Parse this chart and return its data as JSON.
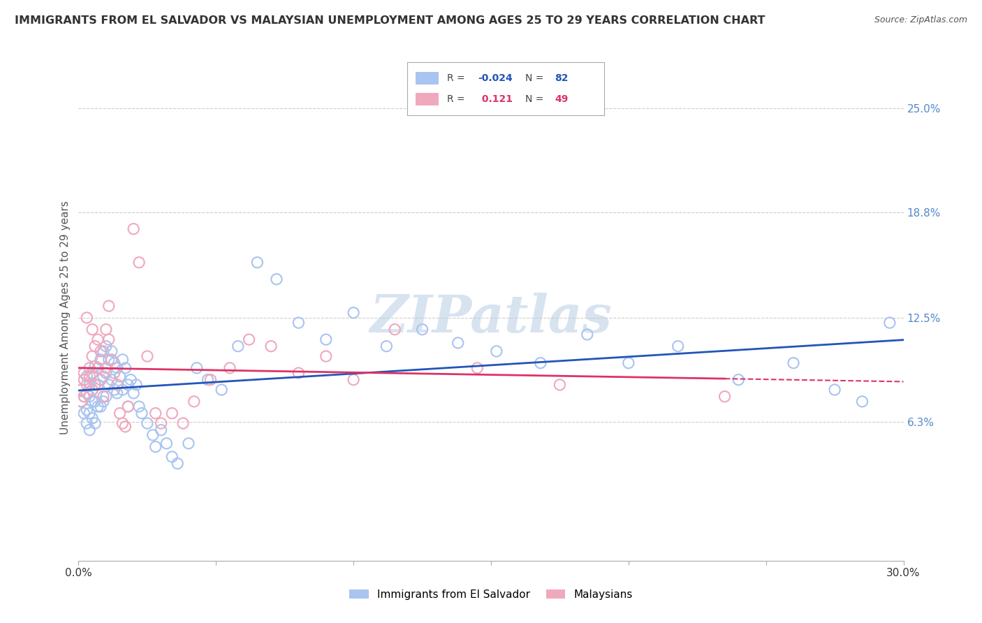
{
  "title": "IMMIGRANTS FROM EL SALVADOR VS MALAYSIAN UNEMPLOYMENT AMONG AGES 25 TO 29 YEARS CORRELATION CHART",
  "source": "Source: ZipAtlas.com",
  "ylabel": "Unemployment Among Ages 25 to 29 years",
  "x_min": 0.0,
  "x_max": 0.3,
  "y_min": -0.02,
  "y_max": 0.27,
  "y_tick_labels_right": [
    "6.3%",
    "12.5%",
    "18.8%",
    "25.0%"
  ],
  "y_tick_vals_right": [
    0.063,
    0.125,
    0.188,
    0.25
  ],
  "legend_blue_label": "Immigrants from El Salvador",
  "legend_pink_label": "Malaysians",
  "R_blue": -0.024,
  "N_blue": 82,
  "R_pink": 0.121,
  "N_pink": 49,
  "blue_color": "#a8c4f0",
  "pink_color": "#f0a8bc",
  "trend_blue_color": "#2255bb",
  "trend_pink_color": "#dd3366",
  "watermark": "ZIPatlas",
  "background_color": "#ffffff",
  "grid_color": "#cccccc",
  "blue_scatter_x": [
    0.001,
    0.001,
    0.002,
    0.002,
    0.002,
    0.003,
    0.003,
    0.003,
    0.003,
    0.004,
    0.004,
    0.004,
    0.004,
    0.005,
    0.005,
    0.005,
    0.005,
    0.006,
    0.006,
    0.006,
    0.006,
    0.007,
    0.007,
    0.007,
    0.008,
    0.008,
    0.008,
    0.009,
    0.009,
    0.009,
    0.01,
    0.01,
    0.01,
    0.011,
    0.011,
    0.012,
    0.012,
    0.013,
    0.013,
    0.014,
    0.014,
    0.015,
    0.016,
    0.016,
    0.017,
    0.018,
    0.018,
    0.019,
    0.02,
    0.021,
    0.022,
    0.023,
    0.025,
    0.027,
    0.028,
    0.03,
    0.032,
    0.034,
    0.036,
    0.04,
    0.043,
    0.047,
    0.052,
    0.058,
    0.065,
    0.072,
    0.08,
    0.09,
    0.1,
    0.112,
    0.125,
    0.138,
    0.152,
    0.168,
    0.185,
    0.2,
    0.218,
    0.24,
    0.26,
    0.275,
    0.285,
    0.295
  ],
  "blue_scatter_y": [
    0.082,
    0.075,
    0.088,
    0.078,
    0.068,
    0.09,
    0.08,
    0.07,
    0.062,
    0.085,
    0.078,
    0.068,
    0.058,
    0.092,
    0.082,
    0.075,
    0.065,
    0.096,
    0.085,
    0.075,
    0.062,
    0.095,
    0.085,
    0.072,
    0.1,
    0.088,
    0.072,
    0.105,
    0.09,
    0.075,
    0.108,
    0.092,
    0.078,
    0.1,
    0.085,
    0.105,
    0.088,
    0.098,
    0.082,
    0.095,
    0.08,
    0.09,
    0.1,
    0.082,
    0.095,
    0.085,
    0.072,
    0.088,
    0.08,
    0.085,
    0.072,
    0.068,
    0.062,
    0.055,
    0.048,
    0.058,
    0.05,
    0.042,
    0.038,
    0.05,
    0.095,
    0.088,
    0.082,
    0.108,
    0.158,
    0.148,
    0.122,
    0.112,
    0.128,
    0.108,
    0.118,
    0.11,
    0.105,
    0.098,
    0.115,
    0.098,
    0.108,
    0.088,
    0.098,
    0.082,
    0.075,
    0.122
  ],
  "pink_scatter_x": [
    0.001,
    0.001,
    0.002,
    0.002,
    0.002,
    0.003,
    0.003,
    0.004,
    0.004,
    0.005,
    0.005,
    0.005,
    0.006,
    0.006,
    0.007,
    0.007,
    0.008,
    0.008,
    0.009,
    0.01,
    0.01,
    0.011,
    0.011,
    0.012,
    0.013,
    0.014,
    0.015,
    0.016,
    0.017,
    0.018,
    0.02,
    0.022,
    0.025,
    0.028,
    0.03,
    0.034,
    0.038,
    0.042,
    0.048,
    0.055,
    0.062,
    0.07,
    0.08,
    0.09,
    0.1,
    0.115,
    0.145,
    0.175,
    0.235
  ],
  "pink_scatter_y": [
    0.082,
    0.075,
    0.092,
    0.088,
    0.078,
    0.085,
    0.125,
    0.09,
    0.095,
    0.102,
    0.118,
    0.082,
    0.108,
    0.085,
    0.112,
    0.095,
    0.105,
    0.088,
    0.078,
    0.118,
    0.095,
    0.132,
    0.112,
    0.1,
    0.092,
    0.085,
    0.068,
    0.062,
    0.06,
    0.072,
    0.178,
    0.158,
    0.102,
    0.068,
    0.062,
    0.068,
    0.062,
    0.075,
    0.088,
    0.095,
    0.112,
    0.108,
    0.092,
    0.102,
    0.088,
    0.118,
    0.095,
    0.085,
    0.078
  ]
}
